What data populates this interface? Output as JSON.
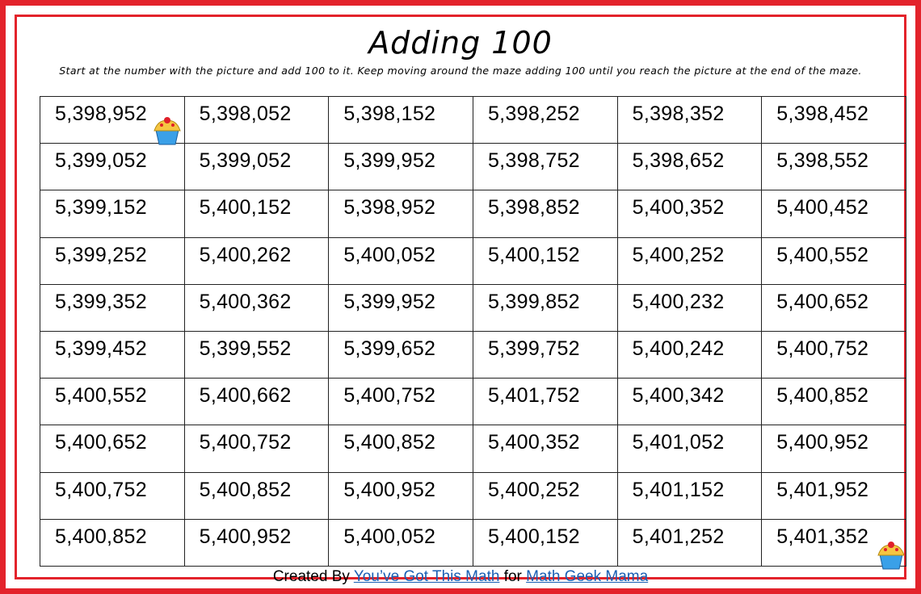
{
  "header": {
    "title": "Adding 100",
    "instructions": "Start at the number with the picture and add 100 to it. Keep moving around the maze adding 100 until you reach the picture at the end of the maze."
  },
  "table": {
    "rows": [
      [
        "5,398,952",
        "5,398,052",
        "5,398,152",
        "5,398,252",
        "5,398,352",
        "5,398,452"
      ],
      [
        "5,399,052",
        "5,399,052",
        "5,399,952",
        "5,398,752",
        "5,398,652",
        "5,398,552"
      ],
      [
        "5,399,152",
        "5,400,152",
        "5,398,952",
        "5,398,852",
        "5,400,352",
        "5,400,452"
      ],
      [
        "5,399,252",
        "5,400,262",
        "5,400,052",
        "5,400,152",
        "5,400,252",
        "5,400,552"
      ],
      [
        "5,399,352",
        "5,400,362",
        "5,399,952",
        "5,399,852",
        "5,400,232",
        "5,400,652"
      ],
      [
        "5,399,452",
        "5,399,552",
        "5,399,652",
        "5,399,752",
        "5,400,242",
        "5,400,752"
      ],
      [
        "5,400,552",
        "5,400,662",
        "5,400,752",
        "5,401,752",
        "5,400,342",
        "5,400,852"
      ],
      [
        "5,400,652",
        "5,400,752",
        "5,400,852",
        "5,400,352",
        "5,401,052",
        "5,400,952"
      ],
      [
        "5,400,752",
        "5,400,852",
        "5,400,952",
        "5,400,252",
        "5,401,152",
        "5,401,952"
      ],
      [
        "5,400,852",
        "5,400,952",
        "5,400,052",
        "5,400,152",
        "5,401,252",
        "5,401,352"
      ]
    ]
  },
  "footer": {
    "prefix": "Created By",
    "link1": "You’ve Got This Math",
    "middle": "for",
    "link2": "Math Geek Mama"
  }
}
